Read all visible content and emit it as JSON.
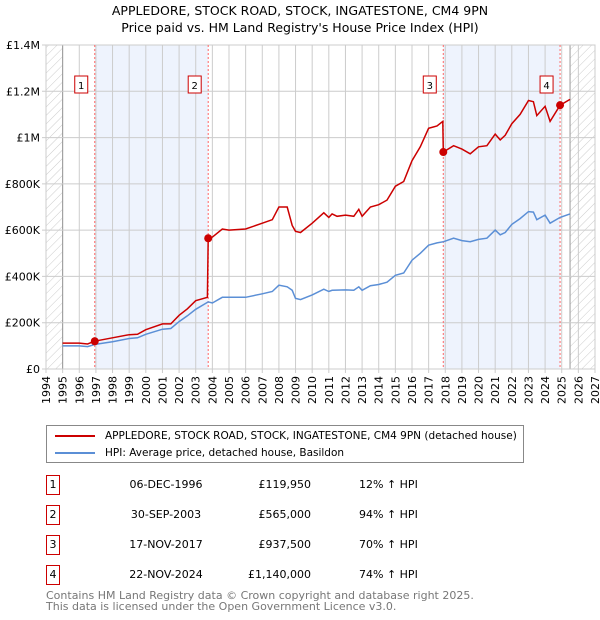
{
  "chart_data": {
    "type": "line",
    "title": "APPLEDORE, STOCK ROAD, STOCK, INGATESTONE, CM4 9PN",
    "subtitle": "Price paid vs. HM Land Registry's House Price Index (HPI)",
    "xlim": [
      1994,
      2027
    ],
    "ylim": [
      0,
      1400000
    ],
    "x_ticks": [
      "1994",
      "1995",
      "1996",
      "1997",
      "1998",
      "1999",
      "2000",
      "2001",
      "2002",
      "2003",
      "2004",
      "2005",
      "2006",
      "2007",
      "2008",
      "2009",
      "2010",
      "2011",
      "2012",
      "2013",
      "2014",
      "2015",
      "2016",
      "2017",
      "2018",
      "2019",
      "2020",
      "2021",
      "2022",
      "2023",
      "2024",
      "2025",
      "2026",
      "2027"
    ],
    "y_ticks": [
      {
        "v": 0,
        "label": "£0"
      },
      {
        "v": 200000,
        "label": "£200K"
      },
      {
        "v": 400000,
        "label": "£400K"
      },
      {
        "v": 600000,
        "label": "£600K"
      },
      {
        "v": 800000,
        "label": "£800K"
      },
      {
        "v": 1000000,
        "label": "£1M"
      },
      {
        "v": 1200000,
        "label": "£1.2M"
      },
      {
        "v": 1400000,
        "label": "£1.4M"
      }
    ],
    "grid": true,
    "hatched_ranges": [
      [
        1994,
        1995
      ],
      [
        2025.5,
        2027
      ]
    ],
    "shaded_ranges": [
      [
        1996.93,
        2003.75
      ],
      [
        2017.88,
        2024.9
      ]
    ],
    "series": [
      {
        "name": "APPLEDORE, STOCK ROAD, STOCK, INGATESTONE, CM4 9PN (detached house)",
        "color": "#cc0000",
        "x": [
          1995,
          1996,
          1996.5,
          1996.93,
          1998,
          1999,
          1999.5,
          2000,
          2001,
          2001.5,
          2002,
          2002.5,
          2003,
          2003.7,
          2003.75,
          2004,
          2004.6,
          2005,
          2006,
          2007,
          2007.6,
          2008,
          2008.5,
          2008.8,
          2009,
          2009.3,
          2010,
          2010.7,
          2011,
          2011.2,
          2011.5,
          2012,
          2012.5,
          2012.8,
          2013,
          2013.5,
          2014,
          2014.5,
          2015,
          2015.5,
          2016,
          2016.5,
          2017,
          2017.5,
          2017.85,
          2017.88,
          2018.5,
          2019,
          2019.5,
          2020,
          2020.5,
          2021,
          2021.3,
          2021.6,
          2022,
          2022.5,
          2023,
          2023.3,
          2023.5,
          2024,
          2024.3,
          2024.9,
          2025.5
        ],
        "values": [
          112000,
          112000,
          108000,
          119950,
          135000,
          148000,
          150000,
          170000,
          195000,
          195000,
          232000,
          260000,
          295000,
          310000,
          565000,
          570000,
          605000,
          600000,
          605000,
          630000,
          645000,
          700000,
          700000,
          620000,
          595000,
          590000,
          630000,
          675000,
          655000,
          670000,
          660000,
          665000,
          660000,
          690000,
          660000,
          700000,
          710000,
          730000,
          790000,
          810000,
          900000,
          960000,
          1040000,
          1050000,
          1070000,
          937500,
          965000,
          950000,
          930000,
          960000,
          965000,
          1015000,
          990000,
          1010000,
          1060000,
          1100000,
          1160000,
          1155000,
          1095000,
          1135000,
          1070000,
          1140000,
          1165000
        ]
      },
      {
        "name": "HPI: Average price, detached house, Basildon",
        "color": "#5b8fd6",
        "x": [
          1995,
          1996,
          1996.5,
          1997,
          1998,
          1999,
          1999.5,
          2000,
          2001,
          2001.5,
          2002,
          2002.5,
          2003,
          2003.75,
          2004,
          2004.6,
          2005,
          2006,
          2007,
          2007.6,
          2008,
          2008.5,
          2008.8,
          2009,
          2009.3,
          2010,
          2010.7,
          2011,
          2011.2,
          2012,
          2012.5,
          2012.8,
          2013,
          2013.5,
          2014,
          2014.5,
          2015,
          2015.5,
          2016,
          2016.5,
          2017,
          2017.5,
          2017.9,
          2018.5,
          2019,
          2019.5,
          2020,
          2020.5,
          2021,
          2021.3,
          2021.6,
          2022,
          2022.5,
          2023,
          2023.3,
          2023.5,
          2024,
          2024.3,
          2024.9,
          2025.5
        ],
        "values": [
          100000,
          100000,
          97000,
          107000,
          118000,
          132000,
          135000,
          150000,
          172000,
          175000,
          205000,
          230000,
          258000,
          290000,
          285000,
          310000,
          310000,
          310000,
          325000,
          335000,
          362000,
          355000,
          340000,
          305000,
          300000,
          320000,
          345000,
          335000,
          340000,
          342000,
          340000,
          355000,
          340000,
          360000,
          365000,
          375000,
          405000,
          415000,
          470000,
          500000,
          535000,
          545000,
          550000,
          565000,
          555000,
          550000,
          560000,
          565000,
          600000,
          580000,
          590000,
          625000,
          650000,
          680000,
          678000,
          645000,
          665000,
          630000,
          655000,
          670000
        ]
      }
    ],
    "markers": [
      {
        "label": "1",
        "x": 1996.93,
        "value": 119950
      },
      {
        "label": "2",
        "x": 2003.75,
        "value": 565000
      },
      {
        "label": "3",
        "x": 2017.88,
        "value": 937500
      },
      {
        "label": "4",
        "x": 2024.9,
        "value": 1140000
      }
    ]
  },
  "legend": {
    "property": "APPLEDORE, STOCK ROAD, STOCK, INGATESTONE, CM4 9PN (detached house)",
    "hpi": "HPI: Average price, detached house, Basildon"
  },
  "sales": [
    {
      "num": "1",
      "date": "06-DEC-1996",
      "price": "£119,950",
      "hpi": "12% ↑ HPI"
    },
    {
      "num": "2",
      "date": "30-SEP-2003",
      "price": "£565,000",
      "hpi": "94% ↑ HPI"
    },
    {
      "num": "3",
      "date": "17-NOV-2017",
      "price": "£937,500",
      "hpi": "70% ↑ HPI"
    },
    {
      "num": "4",
      "date": "22-NOV-2024",
      "price": "£1,140,000",
      "hpi": "74% ↑ HPI"
    }
  ],
  "footer": {
    "line1": "Contains HM Land Registry data © Crown copyright and database right 2025.",
    "line2": "This data is licensed under the Open Government Licence v3.0."
  }
}
